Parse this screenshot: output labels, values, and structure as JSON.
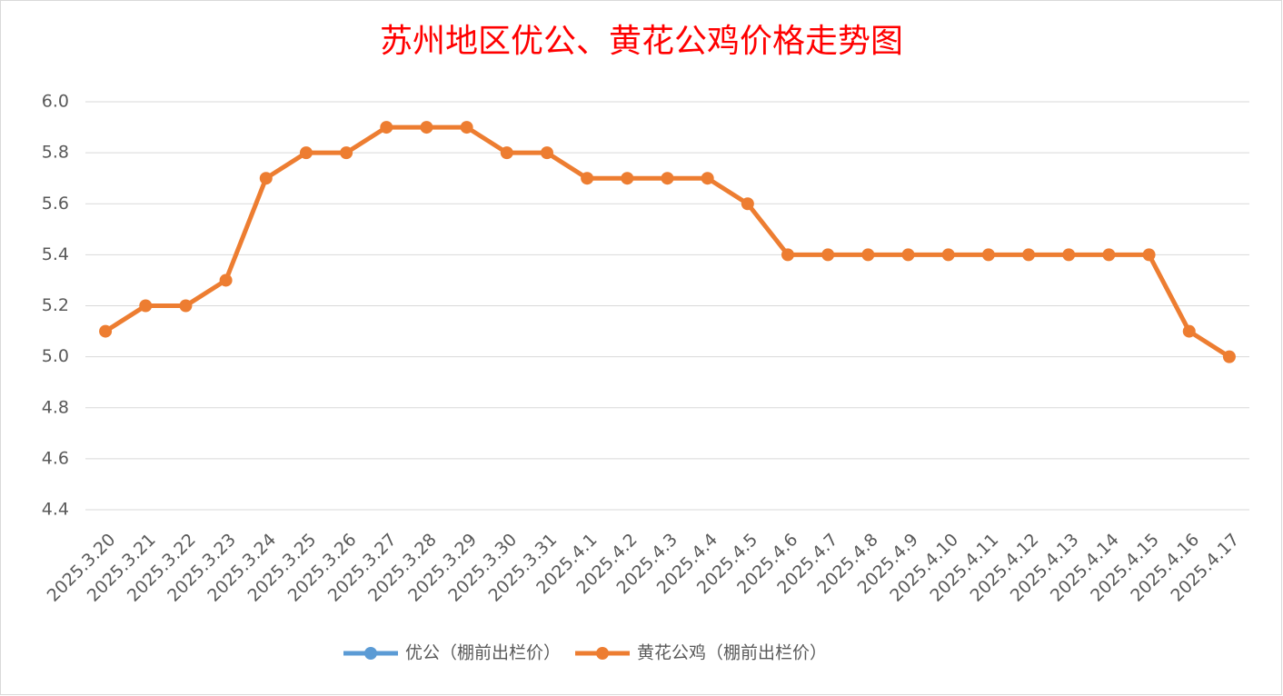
{
  "chart_data": {
    "type": "line",
    "title": "苏州地区优公、黄花公鸡价格走势图",
    "categories": [
      "2025.3.20",
      "2025.3.21",
      "2025.3.22",
      "2025.3.23",
      "2025.3.24",
      "2025.3.25",
      "2025.3.26",
      "2025.3.27",
      "2025.3.28",
      "2025.3.29",
      "2025.3.30",
      "2025.3.31",
      "2025.4.1",
      "2025.4.2",
      "2025.4.3",
      "2025.4.4",
      "2025.4.5",
      "2025.4.6",
      "2025.4.7",
      "2025.4.8",
      "2025.4.9",
      "2025.4.10",
      "2025.4.11",
      "2025.4.12",
      "2025.4.13",
      "2025.4.14",
      "2025.4.15",
      "2025.4.16",
      "2025.4.17"
    ],
    "series": [
      {
        "name": "优公（棚前出栏价）",
        "color": "#5b9bd5",
        "values": [
          null,
          null,
          null,
          null,
          null,
          null,
          null,
          null,
          null,
          null,
          null,
          null,
          null,
          null,
          null,
          null,
          null,
          null,
          null,
          null,
          null,
          null,
          null,
          null,
          null,
          null,
          null,
          null,
          null
        ]
      },
      {
        "name": "黄花公鸡（棚前出栏价）",
        "color": "#ed7d31",
        "values": [
          5.1,
          5.2,
          5.2,
          5.3,
          5.7,
          5.8,
          5.8,
          5.9,
          5.9,
          5.9,
          5.8,
          5.8,
          5.7,
          5.7,
          5.7,
          5.7,
          5.6,
          5.4,
          5.4,
          5.4,
          5.4,
          5.4,
          5.4,
          5.4,
          5.4,
          5.4,
          5.4,
          5.1,
          5.0
        ]
      }
    ],
    "ylim": [
      4.4,
      6.0
    ],
    "yticks": [
      4.4,
      4.6,
      4.8,
      {
        "value": 5,
        "label": "5.0"
      },
      5.2,
      5.4,
      5.6,
      5.8,
      {
        "value": 6,
        "label": "6.0"
      }
    ],
    "grid": true
  }
}
